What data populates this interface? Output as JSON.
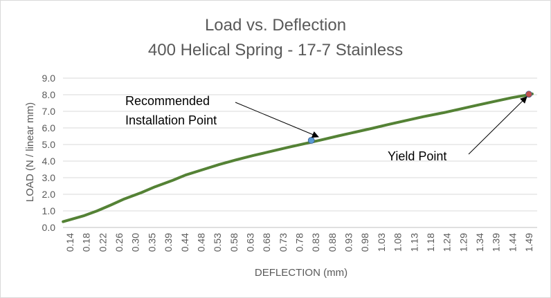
{
  "chart_data": {
    "type": "line",
    "title": "Load vs. Deflection",
    "subtitle": "400 Helical Spring - 17-7 Stainless",
    "xlabel": "DEFLECTION (mm)",
    "ylabel": "LOAD (N / linear mm)",
    "ylim": [
      0,
      9
    ],
    "yticks": [
      "0.0",
      "1.0",
      "2.0",
      "3.0",
      "4.0",
      "5.0",
      "6.0",
      "7.0",
      "8.0",
      "9.0"
    ],
    "xtick_labels": [
      "0.14",
      "0.18",
      "0.22",
      "0.26",
      "0.30",
      "0.35",
      "0.39",
      "0.44",
      "0.48",
      "0.53",
      "0.58",
      "0.63",
      "0.68",
      "0.73",
      "0.78",
      "0.83",
      "0.88",
      "0.93",
      "0.98",
      "1.03",
      "1.08",
      "1.13",
      "1.18",
      "1.24",
      "1.29",
      "1.34",
      "1.39",
      "1.44",
      "1.49"
    ],
    "grid": true,
    "series": [
      {
        "color": "#548235",
        "x": [
          0.12,
          0.18,
          0.22,
          0.26,
          0.3,
          0.35,
          0.39,
          0.44,
          0.48,
          0.53,
          0.58,
          0.63,
          0.68,
          0.73,
          0.78,
          0.83,
          0.88,
          0.93,
          0.98,
          1.03,
          1.08,
          1.13,
          1.18,
          1.24,
          1.29,
          1.34,
          1.39,
          1.44,
          1.49,
          1.5
        ],
        "y": [
          0.35,
          0.7,
          1.0,
          1.35,
          1.72,
          2.1,
          2.45,
          2.82,
          3.16,
          3.48,
          3.8,
          4.08,
          4.34,
          4.58,
          4.82,
          5.05,
          5.28,
          5.52,
          5.75,
          5.98,
          6.22,
          6.45,
          6.68,
          6.92,
          7.15,
          7.38,
          7.6,
          7.82,
          8.0,
          8.05
        ]
      }
    ],
    "points": [
      {
        "label": "Recommended Installation Point",
        "x": 0.85,
        "y": 5.25,
        "color": "#5b9bd5"
      },
      {
        "label": "Yield Point",
        "x": 1.49,
        "y": 8.03,
        "color": "#c0504d"
      }
    ],
    "annotations": [
      {
        "lines": [
          "Recommended",
          "Installation Point"
        ]
      },
      {
        "lines": [
          "Yield Point"
        ]
      }
    ]
  }
}
